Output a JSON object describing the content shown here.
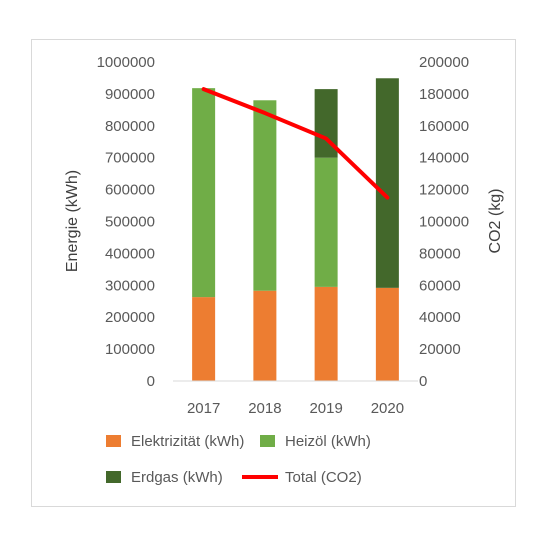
{
  "chart_data": {
    "type": "bar",
    "stacked": true,
    "categories": [
      "2017",
      "2018",
      "2019",
      "2020"
    ],
    "series": [
      {
        "name": "Elektrizität (kWh)",
        "axis": "left",
        "color": "#ed7d31",
        "values": [
          263000,
          283000,
          295000,
          292000
        ]
      },
      {
        "name": "Heizöl (kWh)",
        "axis": "left",
        "color": "#70ad47",
        "values": [
          655000,
          597000,
          405000,
          0
        ]
      },
      {
        "name": "Erdgas (kWh)",
        "axis": "left",
        "color": "#43682b",
        "values": [
          0,
          0,
          215000,
          657000
        ]
      },
      {
        "name": "Total (CO2)",
        "axis": "right",
        "type": "line",
        "color": "#ff0000",
        "values": [
          183000,
          168000,
          152000,
          115000
        ]
      }
    ],
    "ylabel": "Energie (kWh)",
    "y2label": "CO2 (kg)",
    "ylim": [
      0,
      1000000
    ],
    "y2lim": [
      0,
      200000
    ],
    "yticks": [
      "0",
      "100000",
      "200000",
      "300000",
      "400000",
      "500000",
      "600000",
      "700000",
      "800000",
      "900000",
      "1000000"
    ],
    "y2ticks": [
      "0",
      "20000",
      "40000",
      "60000",
      "80000",
      "100000",
      "120000",
      "140000",
      "160000",
      "180000",
      "200000"
    ],
    "grid": false,
    "legend": "bottom"
  }
}
